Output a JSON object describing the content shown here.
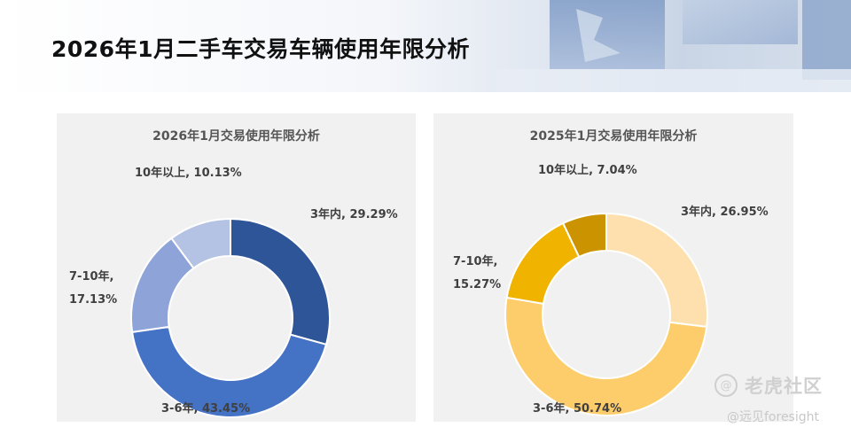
{
  "header": {
    "title": "2026年1月二手车交易车辆使用年限分析"
  },
  "colors": {
    "left": [
      "#2d5597",
      "#4472c4",
      "#8ea4d8",
      "#b4c2e3"
    ],
    "right": [
      "#fde0ad",
      "#fecd6b",
      "#f0b400",
      "#cc9300"
    ]
  },
  "chart_data": [
    {
      "type": "pie",
      "title": "2026年1月交易使用年限分析",
      "categories": [
        "3年内",
        "3-6年",
        "7-10年",
        "10年以上"
      ],
      "values": [
        29.29,
        43.45,
        17.13,
        10.13
      ],
      "labels": [
        "3年内, 29.29%",
        "3-6年, 43.45%",
        "7-10年,",
        "10年以上, 10.13%"
      ],
      "label_extra": [
        "",
        "",
        "17.13%",
        ""
      ]
    },
    {
      "type": "pie",
      "title": "2025年1月交易使用年限分析",
      "categories": [
        "3年内",
        "3-6年",
        "7-10年",
        "10年以上"
      ],
      "values": [
        26.95,
        50.74,
        15.27,
        7.04
      ],
      "labels": [
        "3年内, 26.95%",
        "3-6年, 50.74%",
        "7-10年,",
        "10年以上, 7.04%"
      ],
      "label_extra": [
        "",
        "",
        "15.27%",
        ""
      ]
    }
  ],
  "watermark": {
    "logo_glyph": "@",
    "name": "老虎社区",
    "handle": "@远见foresight"
  }
}
